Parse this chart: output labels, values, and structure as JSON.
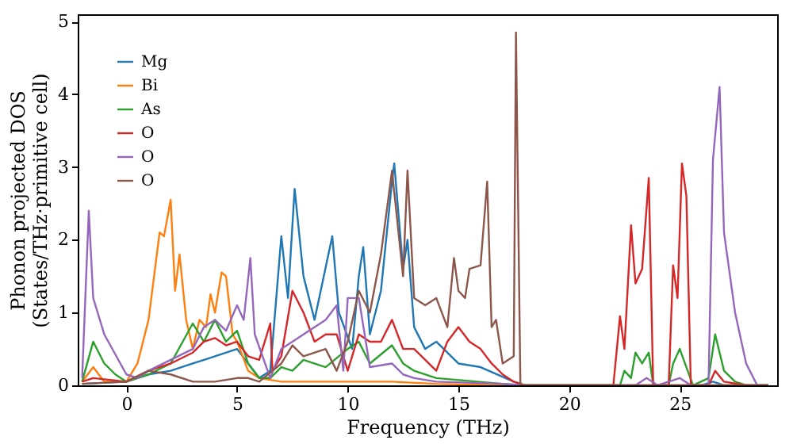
{
  "chart_data": {
    "type": "line",
    "xlabel": "Frequency (THz)",
    "ylabel": "Phonon projected DOS\n(States/THz·primitive cell)",
    "xlim": [
      -2.2,
      29.4
    ],
    "ylim": [
      0,
      5.1
    ],
    "xticks": [
      0,
      5,
      10,
      15,
      20,
      25
    ],
    "yticks": [
      0,
      1,
      2,
      3,
      4,
      5
    ],
    "legend": "top left",
    "grid": false,
    "series": [
      {
        "name": "Mg",
        "color": "#1f77b4",
        "x": [
          -2,
          0,
          1,
          2,
          3,
          4,
          5,
          5.5,
          6,
          6.5,
          7,
          7.3,
          7.6,
          8,
          8.5,
          9.3,
          9.6,
          10.2,
          10.5,
          10.7,
          11,
          11.5,
          12,
          12.1,
          12.5,
          12.7,
          13,
          13.5,
          14,
          15,
          16,
          17.5,
          18,
          26,
          26.5,
          27,
          29
        ],
        "values": [
          0.02,
          0.05,
          0.15,
          0.2,
          0.3,
          0.4,
          0.5,
          0.3,
          0.1,
          0.2,
          2.05,
          1.2,
          2.7,
          1.5,
          0.9,
          2.05,
          1.0,
          0.5,
          1.5,
          1.9,
          0.7,
          1.3,
          2.8,
          3.05,
          1.6,
          2.0,
          0.8,
          0.5,
          0.6,
          0.3,
          0.25,
          0.05,
          0,
          0,
          0.05,
          0,
          0
        ]
      },
      {
        "name": "Bi",
        "color": "#ff7f0e",
        "x": [
          -2,
          -1.5,
          -1,
          0,
          0.5,
          1,
          1.5,
          1.7,
          2,
          2.2,
          2.4,
          2.7,
          3,
          3.3,
          3.6,
          3.8,
          4,
          4.3,
          4.5,
          4.8,
          5,
          5.5,
          6,
          7,
          8,
          10,
          12,
          14,
          17,
          29
        ],
        "values": [
          0.05,
          0.25,
          0.05,
          0.05,
          0.3,
          0.9,
          2.1,
          2.05,
          2.55,
          1.3,
          1.8,
          0.9,
          0.5,
          0.9,
          0.8,
          1.25,
          1.0,
          1.55,
          1.5,
          0.7,
          0.6,
          0.2,
          0.1,
          0.05,
          0.05,
          0.05,
          0.05,
          0.02,
          0,
          0
        ]
      },
      {
        "name": "As",
        "color": "#2ca02c",
        "x": [
          -2,
          -1.5,
          -1,
          -0.5,
          0,
          1,
          2,
          3,
          3.5,
          4,
          4.5,
          5,
          5.5,
          6,
          6.5,
          7,
          7.5,
          8,
          9,
          10,
          10.5,
          11,
          12,
          12.5,
          13,
          14,
          17,
          18,
          22.3,
          22.5,
          22.8,
          23,
          23.3,
          23.6,
          23.8,
          24.5,
          24.7,
          25,
          25.3,
          25.6,
          26.3,
          26.6,
          27,
          27.5,
          28,
          29
        ],
        "values": [
          0.05,
          0.6,
          0.3,
          0.15,
          0.05,
          0.15,
          0.3,
          0.85,
          0.6,
          0.9,
          0.6,
          0.75,
          0.3,
          0.1,
          0.1,
          0.25,
          0.2,
          0.35,
          0.25,
          0.5,
          0.6,
          0.3,
          0.55,
          0.3,
          0.2,
          0.1,
          0.02,
          0,
          0,
          0.2,
          0.1,
          0.45,
          0.3,
          0.45,
          0,
          0,
          0.3,
          0.5,
          0.25,
          0,
          0.1,
          0.7,
          0.2,
          0.05,
          0,
          0
        ]
      },
      {
        "name": "O",
        "color": "#d62728",
        "x": [
          -2,
          -1.5,
          0,
          1,
          2,
          3,
          3.5,
          4,
          4.5,
          5,
          5.5,
          6,
          6.5,
          6.6,
          7,
          7.5,
          8,
          8.5,
          9,
          9.5,
          10,
          10.5,
          11,
          11.5,
          12,
          12.5,
          13,
          14,
          14.5,
          15,
          15.5,
          16,
          16.5,
          17,
          17.5,
          18,
          22,
          22.3,
          22.5,
          22.8,
          23,
          23.3,
          23.6,
          23.8,
          24.5,
          24.7,
          24.9,
          25.1,
          25.3,
          25.5,
          26.3,
          26.6,
          27,
          28,
          29
        ],
        "values": [
          0.05,
          0.1,
          0.05,
          0.2,
          0.3,
          0.45,
          0.6,
          0.65,
          0.55,
          0.6,
          0.4,
          0.35,
          0.85,
          0.2,
          0.4,
          1.3,
          1.0,
          0.6,
          0.7,
          0.7,
          0.2,
          0.7,
          0.6,
          0.6,
          0.9,
          0.5,
          0.5,
          0.2,
          0.6,
          0.8,
          0.6,
          0.5,
          0.3,
          0.15,
          0.05,
          0,
          0,
          0.95,
          0.5,
          2.2,
          1.4,
          1.6,
          2.85,
          0,
          0,
          1.65,
          1.2,
          3.05,
          2.6,
          0,
          0,
          0.2,
          0.05,
          0,
          0
        ]
      },
      {
        "name": "O",
        "color": "#9467bd",
        "x": [
          -2,
          -1.7,
          -1.5,
          -1,
          0,
          0.5,
          1,
          2,
          3,
          3.5,
          4,
          4.5,
          5,
          5.3,
          5.6,
          5.8,
          6.5,
          7,
          7.5,
          8,
          9,
          9.5,
          9.8,
          10,
          10.5,
          11,
          12,
          12.5,
          13,
          14,
          17,
          18,
          23,
          23.5,
          24,
          25,
          25.5,
          26.3,
          26.5,
          26.8,
          27,
          27.5,
          28,
          28.5,
          29
        ],
        "values": [
          0.1,
          2.4,
          1.2,
          0.7,
          0.15,
          0.1,
          0.2,
          0.35,
          0.5,
          0.8,
          0.9,
          0.75,
          1.1,
          0.9,
          1.75,
          0.7,
          0.1,
          0.5,
          0.6,
          0.7,
          0.9,
          1.1,
          0.2,
          1.2,
          1.2,
          0.25,
          0.3,
          0.15,
          0.1,
          0.05,
          0.02,
          0,
          0,
          0.1,
          0,
          0.1,
          0,
          0,
          3.1,
          4.1,
          2.1,
          1.0,
          0.3,
          0,
          0
        ]
      },
      {
        "name": "O",
        "color": "#8c564b",
        "x": [
          -2,
          0,
          1,
          2,
          3,
          4,
          5,
          5.5,
          6,
          7,
          7.5,
          8,
          9,
          9.5,
          10,
          10.5,
          11,
          11.5,
          12,
          12.5,
          12.7,
          13,
          13.5,
          14,
          14.5,
          14.8,
          15,
          15.3,
          15.5,
          16,
          16.3,
          16.5,
          16.7,
          17,
          17.5,
          17.6,
          17.8,
          29
        ],
        "values": [
          0.02,
          0.05,
          0.2,
          0.15,
          0.05,
          0.05,
          0.1,
          0.1,
          0.05,
          0.3,
          0.55,
          0.4,
          0.5,
          0.2,
          0.6,
          1.3,
          1.0,
          1.8,
          2.95,
          1.5,
          2.95,
          1.2,
          1.1,
          1.2,
          0.8,
          1.75,
          1.3,
          1.2,
          1.6,
          1.65,
          2.8,
          0.8,
          0.9,
          0.3,
          0.4,
          4.85,
          0,
          0
        ]
      }
    ]
  }
}
